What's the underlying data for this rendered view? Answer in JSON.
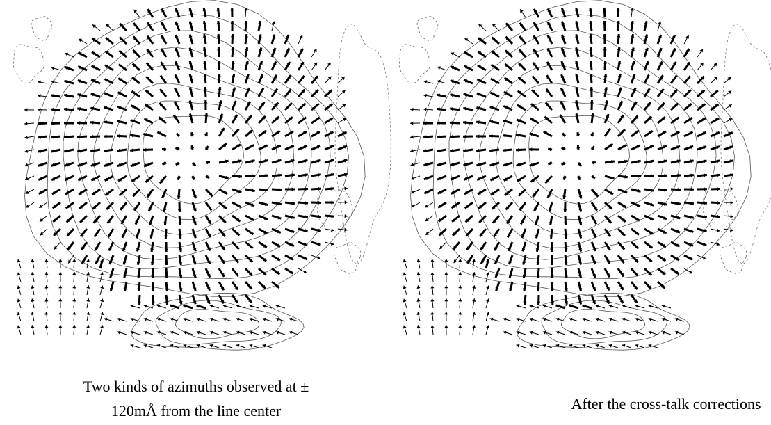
{
  "panels": [
    {
      "caption_lines": [
        "Two kinds of azimuths observed at ±",
        "120mÅ from  the line center"
      ]
    },
    {
      "caption_lines": [
        "After the cross-talk corrections"
      ]
    }
  ]
}
